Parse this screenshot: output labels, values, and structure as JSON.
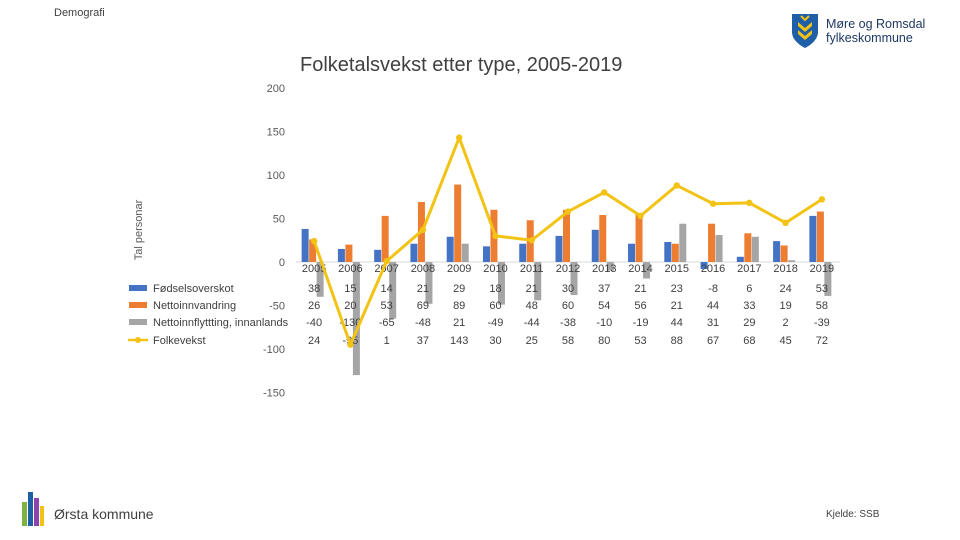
{
  "header": {
    "section_label": "Demografi"
  },
  "logo": {
    "line1": "Møre og Romsdal",
    "line2": "fylkeskommune"
  },
  "footer": {
    "municipality": "Ørsta kommune",
    "source": "Kjelde: SSB"
  },
  "colors": {
    "fodsel": "#4472c4",
    "netto": "#ed7d31",
    "innan": "#a5a5a5",
    "folke": "#f2c314"
  },
  "chart_data": {
    "type": "bar",
    "title": "Folketalsvekst etter type, 2005-2019",
    "ylabel": "Tal personar",
    "xlabel": "",
    "ylim": [
      -150,
      200
    ],
    "yticks": [
      -150,
      -100,
      -50,
      0,
      50,
      100,
      150,
      200
    ],
    "categories": [
      "2005",
      "2006",
      "2007",
      "2008",
      "2009",
      "2010",
      "2011",
      "2012",
      "2013",
      "2014",
      "2015",
      "2016",
      "2017",
      "2018",
      "2019"
    ],
    "series": [
      {
        "name": "Fødselsoverskot",
        "type": "bar",
        "values": [
          38,
          15,
          14,
          21,
          29,
          18,
          21,
          30,
          37,
          21,
          23,
          -8,
          6,
          24,
          53
        ]
      },
      {
        "name": "Nettoinnvandring",
        "type": "bar",
        "values": [
          26,
          20,
          53,
          69,
          89,
          60,
          48,
          60,
          54,
          56,
          21,
          44,
          33,
          19,
          58
        ]
      },
      {
        "name": "Nettoinnflyttting, innanlands",
        "type": "bar",
        "values": [
          -40,
          -130,
          -65,
          -48,
          21,
          -49,
          -44,
          -38,
          -10,
          -19,
          44,
          31,
          29,
          2,
          -39
        ]
      },
      {
        "name": "Folkevekst",
        "type": "line",
        "values": [
          24,
          -95,
          1,
          37,
          143,
          30,
          25,
          58,
          80,
          53,
          88,
          67,
          68,
          45,
          72
        ]
      }
    ],
    "table_values": {
      "Fødselsoverskot": [
        "38",
        "15",
        "14",
        "21",
        "29",
        "18",
        "21",
        "30",
        "37",
        "21",
        "23",
        "-8",
        "6",
        "24",
        "53"
      ],
      "Nettoinnvandring": [
        "26",
        "20",
        "53",
        "69",
        "89",
        "60",
        "48",
        "60",
        "54",
        "56",
        "21",
        "44",
        "33",
        "19",
        "58"
      ],
      "Nettoinnflyttting, innanlands": [
        "-40",
        "-130",
        "-65",
        "-48",
        "21",
        "-49",
        "-44",
        "-38",
        "-10",
        "-19",
        "44",
        "31",
        "29",
        "2",
        "-39"
      ],
      "Folkevekst": [
        "24",
        "-95",
        "1",
        "37",
        "143",
        "30",
        "25",
        "58",
        "80",
        "53",
        "88",
        "67",
        "68",
        "45",
        "72"
      ]
    },
    "legend_position": "left, in data table",
    "grid": false
  }
}
